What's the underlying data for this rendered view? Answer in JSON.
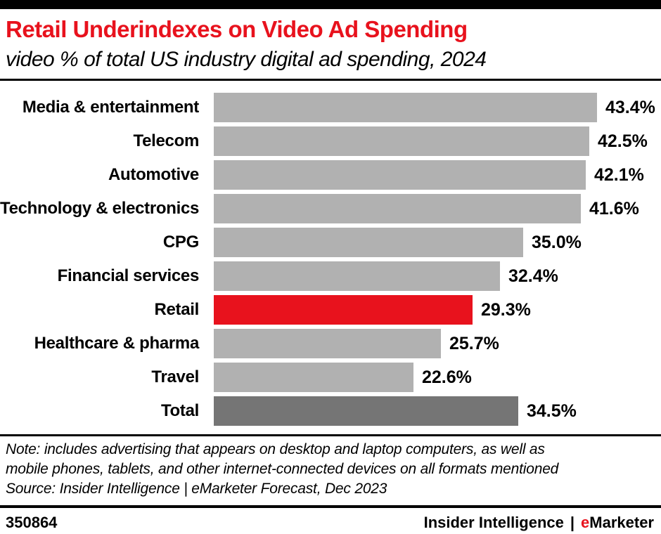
{
  "header": {
    "title": "Retail Underindexes on Video Ad Spending",
    "subtitle": "video % of total US industry digital ad spending, 2024"
  },
  "chart_data": {
    "type": "bar",
    "orientation": "horizontal",
    "title": "Retail Underindexes on Video Ad Spending",
    "subtitle": "video % of total US industry digital ad spending, 2024",
    "unit": "%",
    "categories": [
      "Media & entertainment",
      "Telecom",
      "Automotive",
      "Technology & electronics",
      "CPG",
      "Financial services",
      "Retail",
      "Healthcare & pharma",
      "Travel",
      "Total"
    ],
    "values": [
      43.4,
      42.5,
      42.1,
      41.6,
      35.0,
      32.4,
      29.3,
      25.7,
      22.6,
      34.5
    ],
    "value_labels": [
      "43.4%",
      "42.5%",
      "42.1%",
      "41.6%",
      "35.0%",
      "32.4%",
      "29.3%",
      "25.7%",
      "22.6%",
      "34.5%"
    ],
    "bar_styles": [
      "default",
      "default",
      "default",
      "default",
      "default",
      "default",
      "highlight",
      "default",
      "default",
      "total"
    ],
    "xlim": [
      0,
      43.4
    ],
    "grid": false,
    "legend": false,
    "colors": {
      "default": "#b1b1b1",
      "highlight": "#e8121d",
      "total": "#757575"
    }
  },
  "notes": {
    "lines": [
      "Note: includes advertising that appears on desktop and laptop computers, as well as",
      "mobile phones, tablets, and other internet-connected devices on all formats mentioned",
      "Source: Insider Intelligence | eMarketer Forecast, Dec 2023"
    ]
  },
  "footer": {
    "chart_id": "350864",
    "brand_prefix": "Insider Intelligence",
    "brand_separator": "|",
    "brand_accent": "e",
    "brand_rest": "Marketer"
  },
  "colors": {
    "accent_red": "#e8121d",
    "bar_gray": "#b1b1b1",
    "bar_dark_gray": "#757575",
    "text_black": "#000000"
  }
}
